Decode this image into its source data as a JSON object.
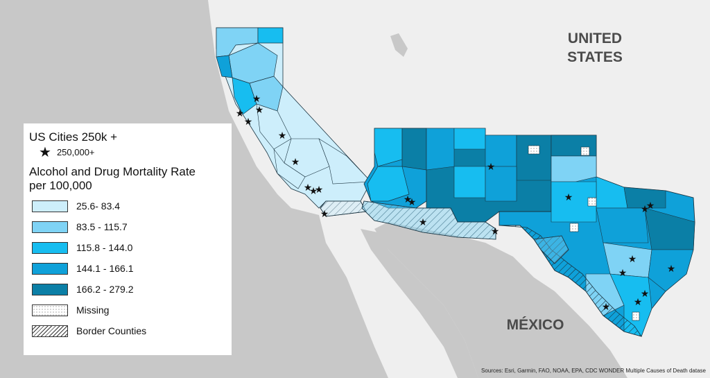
{
  "map": {
    "country_labels": {
      "us_line1": "UNITED",
      "us_line2": "STATES",
      "mexico": "MÉXICO"
    },
    "colors": {
      "ocean": "#c8c8c8",
      "land": "#efefef",
      "class1": "#cdeefb",
      "class2": "#7fd3f5",
      "class3": "#17bdf0",
      "class4": "#0fa1d9",
      "class5": "#0b7fa6",
      "county_border": "#1a3340"
    }
  },
  "legend": {
    "cities_title": "US Cities 250k +",
    "cities_item": "250,000+",
    "rate_title_line1": "Alcohol and Drug Mortality Rate",
    "rate_title_line2": "per 100,000",
    "classes": [
      {
        "label": "25.6- 83.4",
        "color": "#cdeefb"
      },
      {
        "label": "83.5 - 115.7",
        "color": "#7fd3f5"
      },
      {
        "label": "115.8 - 144.0",
        "color": "#17bdf0"
      },
      {
        "label": "144.1 - 166.1",
        "color": "#0fa1d9"
      },
      {
        "label": "166.2 - 279.2",
        "color": "#0b7fa6"
      }
    ],
    "missing": "Missing",
    "border": "Border Counties"
  },
  "sources": "Sources: Esri, Garmin, FAO, NOAA, EPA, CDC WONDER Multiple Causes of Death datase"
}
